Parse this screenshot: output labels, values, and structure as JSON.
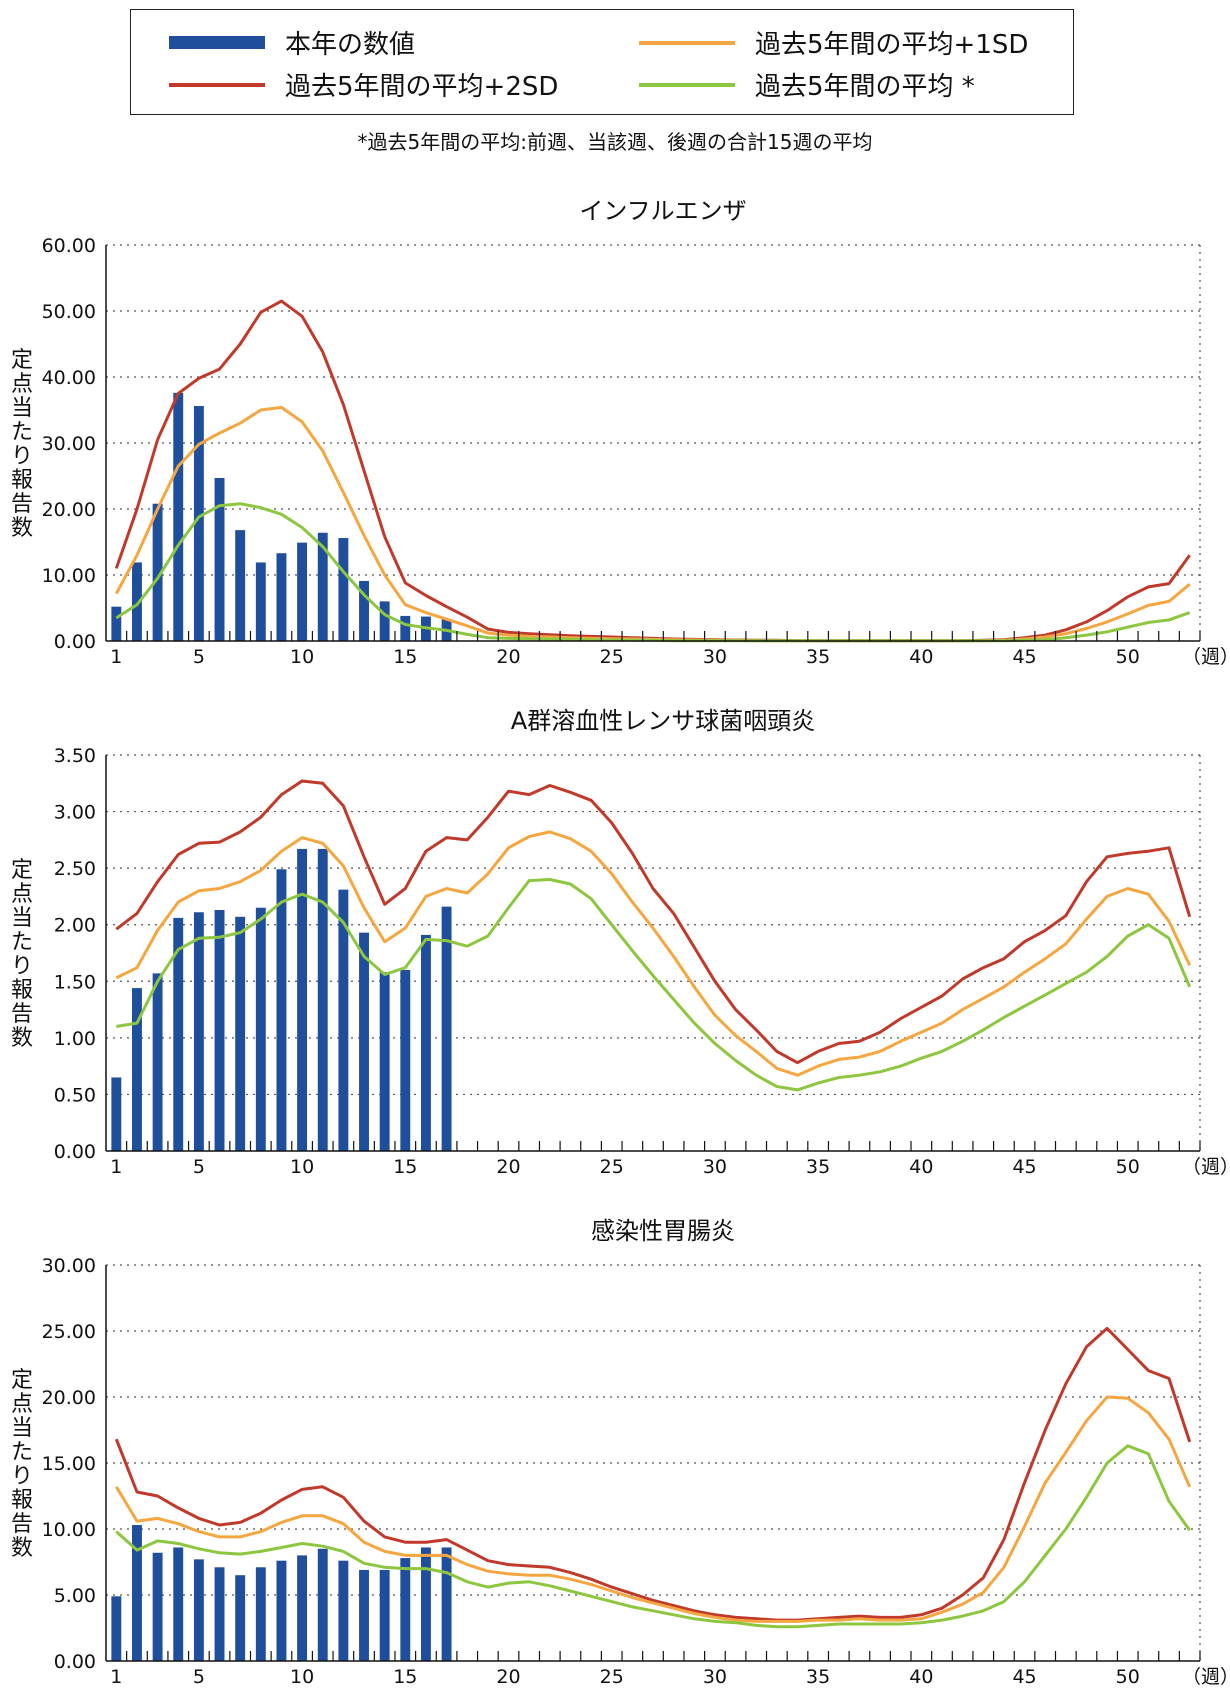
{
  "legend": {
    "items": [
      {
        "label": "本年の数値",
        "kind": "bar",
        "color": "#1f4e9c"
      },
      {
        "label": "過去5年間の平均+1SD",
        "kind": "line",
        "color": "#f5a640"
      },
      {
        "label": "過去5年間の平均+2SD",
        "kind": "line",
        "color": "#c0392b"
      },
      {
        "label": "過去5年間の平均 *",
        "kind": "line",
        "color": "#8dc63f"
      }
    ],
    "footnote": "*過去5年間の平均:前週、当該週、後週の合計15週の平均"
  },
  "colors": {
    "bar": "#1f4e9c",
    "sd1": "#f5a640",
    "sd2": "#c0392b",
    "avg": "#8dc63f",
    "grid": "#555555"
  },
  "chart_data": [
    {
      "type": "bar",
      "title": "インフルエンザ",
      "ylabel": "定点当たり報告数",
      "xlabel": "（週）",
      "ylim": [
        0,
        60
      ],
      "yticks": [
        "0.00",
        "10.00",
        "20.00",
        "30.00",
        "40.00",
        "50.00",
        "60.00"
      ],
      "xticks": [
        "1",
        "5",
        "10",
        "15",
        "20",
        "25",
        "30",
        "35",
        "40",
        "45",
        "50"
      ],
      "grid": true,
      "bars": {
        "name": "本年の数値",
        "weeks": [
          1,
          2,
          3,
          4,
          5,
          6,
          7,
          8,
          9,
          10,
          11,
          12,
          13,
          14,
          15,
          16,
          17
        ],
        "values": [
          5.2,
          11.9,
          20.8,
          37.6,
          35.6,
          24.7,
          16.8,
          11.9,
          13.3,
          14.9,
          16.4,
          15.6,
          9.1,
          6.0,
          3.8,
          3.7,
          3.3
        ]
      },
      "series": [
        {
          "name": "過去5年間の平均+2SD",
          "color": "#c0392b",
          "values": [
            11.0,
            20.0,
            30.5,
            37.5,
            39.8,
            41.2,
            45.0,
            49.8,
            51.5,
            49.2,
            43.8,
            35.8,
            25.8,
            15.8,
            8.8,
            6.9,
            5.2,
            3.6,
            1.8,
            1.3,
            1.1,
            0.95,
            0.8,
            0.7,
            0.6,
            0.5,
            0.4,
            0.3,
            0.25,
            0.2,
            0.15,
            0.1,
            0.1,
            0.05,
            0.05,
            0.05,
            0.05,
            0.05,
            0.05,
            0.05,
            0.05,
            0.05,
            0.1,
            0.2,
            0.5,
            0.9,
            1.7,
            2.9,
            4.6,
            6.7,
            8.2,
            8.7,
            13.0
          ]
        },
        {
          "name": "過去5年間の平均+1SD",
          "color": "#f5a640",
          "values": [
            7.2,
            13.0,
            20.0,
            26.5,
            29.8,
            31.5,
            33.0,
            35.0,
            35.4,
            33.2,
            28.8,
            22.5,
            16.0,
            10.0,
            5.5,
            4.3,
            3.3,
            2.3,
            1.2,
            0.9,
            0.7,
            0.6,
            0.5,
            0.4,
            0.35,
            0.3,
            0.25,
            0.2,
            0.15,
            0.1,
            0.1,
            0.05,
            0.05,
            0.05,
            0.05,
            0.05,
            0.05,
            0.05,
            0.05,
            0.05,
            0.05,
            0.05,
            0.05,
            0.1,
            0.3,
            0.6,
            1.1,
            1.9,
            2.9,
            4.1,
            5.4,
            6.0,
            8.6
          ]
        },
        {
          "name": "過去5年間の平均 *",
          "color": "#8dc63f",
          "values": [
            3.5,
            5.5,
            9.5,
            14.5,
            18.8,
            20.5,
            20.8,
            20.2,
            19.2,
            17.2,
            14.3,
            10.5,
            7.0,
            4.0,
            2.5,
            2.0,
            1.6,
            1.0,
            0.5,
            0.4,
            0.35,
            0.3,
            0.25,
            0.2,
            0.15,
            0.1,
            0.1,
            0.05,
            0.05,
            0.05,
            0.05,
            0.05,
            0.05,
            0.05,
            0.05,
            0.05,
            0.05,
            0.05,
            0.05,
            0.05,
            0.05,
            0.05,
            0.05,
            0.05,
            0.1,
            0.2,
            0.5,
            0.9,
            1.4,
            2.1,
            2.8,
            3.2,
            4.3
          ]
        }
      ]
    },
    {
      "type": "bar",
      "title": "A群溶血性レンサ球菌咽頭炎",
      "ylabel": "定点当たり報告数",
      "xlabel": "（週）",
      "ylim": [
        0,
        3.5
      ],
      "yticks": [
        "0.00",
        "0.50",
        "1.00",
        "1.50",
        "2.00",
        "2.50",
        "3.00",
        "3.50"
      ],
      "xticks": [
        "1",
        "5",
        "10",
        "15",
        "20",
        "25",
        "30",
        "35",
        "40",
        "45",
        "50"
      ],
      "grid": true,
      "bars": {
        "name": "本年の数値",
        "weeks": [
          1,
          2,
          3,
          4,
          5,
          6,
          7,
          8,
          9,
          10,
          11,
          12,
          13,
          14,
          15,
          16,
          17
        ],
        "values": [
          0.65,
          1.44,
          1.57,
          2.06,
          2.11,
          2.13,
          2.07,
          2.15,
          2.49,
          2.67,
          2.67,
          2.31,
          1.93,
          1.58,
          1.6,
          1.91,
          2.16
        ]
      },
      "series": [
        {
          "name": "過去5年間の平均+2SD",
          "color": "#c0392b",
          "values": [
            1.96,
            2.1,
            2.38,
            2.62,
            2.72,
            2.73,
            2.82,
            2.95,
            3.15,
            3.27,
            3.25,
            3.05,
            2.6,
            2.18,
            2.32,
            2.65,
            2.77,
            2.75,
            2.95,
            3.18,
            3.15,
            3.23,
            3.17,
            3.1,
            2.9,
            2.63,
            2.32,
            2.1,
            1.8,
            1.5,
            1.25,
            1.07,
            0.88,
            0.78,
            0.88,
            0.95,
            0.97,
            1.05,
            1.17,
            1.27,
            1.37,
            1.52,
            1.62,
            1.7,
            1.85,
            1.95,
            2.08,
            2.38,
            2.6,
            2.63,
            2.65,
            2.68,
            2.07
          ]
        },
        {
          "name": "過去5年間の平均+1SD",
          "color": "#f5a640",
          "values": [
            1.53,
            1.62,
            1.95,
            2.2,
            2.3,
            2.32,
            2.38,
            2.48,
            2.65,
            2.77,
            2.72,
            2.52,
            2.15,
            1.85,
            1.97,
            2.25,
            2.32,
            2.28,
            2.45,
            2.68,
            2.78,
            2.82,
            2.76,
            2.65,
            2.45,
            2.2,
            1.97,
            1.72,
            1.45,
            1.2,
            1.02,
            0.88,
            0.73,
            0.67,
            0.75,
            0.81,
            0.83,
            0.88,
            0.97,
            1.05,
            1.13,
            1.25,
            1.35,
            1.45,
            1.58,
            1.7,
            1.83,
            2.05,
            2.25,
            2.32,
            2.27,
            2.03,
            1.64
          ]
        },
        {
          "name": "過去5年間の平均 *",
          "color": "#8dc63f",
          "values": [
            1.1,
            1.13,
            1.5,
            1.78,
            1.88,
            1.89,
            1.93,
            2.05,
            2.2,
            2.27,
            2.2,
            2.02,
            1.72,
            1.56,
            1.62,
            1.87,
            1.86,
            1.81,
            1.9,
            2.15,
            2.39,
            2.4,
            2.36,
            2.23,
            2.0,
            1.77,
            1.55,
            1.34,
            1.13,
            0.95,
            0.8,
            0.67,
            0.57,
            0.54,
            0.6,
            0.65,
            0.67,
            0.7,
            0.75,
            0.82,
            0.88,
            0.97,
            1.07,
            1.18,
            1.28,
            1.38,
            1.48,
            1.58,
            1.72,
            1.9,
            2.0,
            1.88,
            1.45
          ]
        }
      ]
    },
    {
      "type": "bar",
      "title": "感染性胃腸炎",
      "ylabel": "定点当たり報告数",
      "xlabel": "（週）",
      "ylim": [
        0,
        30
      ],
      "yticks": [
        "0.00",
        "5.00",
        "10.00",
        "15.00",
        "20.00",
        "25.00",
        "30.00"
      ],
      "xticks": [
        "1",
        "5",
        "10",
        "15",
        "20",
        "25",
        "30",
        "35",
        "40",
        "45",
        "50"
      ],
      "grid": true,
      "bars": {
        "name": "本年の数値",
        "weeks": [
          1,
          2,
          3,
          4,
          5,
          6,
          7,
          8,
          9,
          10,
          11,
          12,
          13,
          14,
          15,
          16,
          17
        ],
        "values": [
          4.9,
          10.3,
          8.2,
          8.6,
          7.7,
          7.1,
          6.5,
          7.1,
          7.6,
          8.0,
          8.5,
          7.6,
          6.9,
          6.9,
          7.8,
          8.6,
          8.6
        ]
      },
      "series": [
        {
          "name": "過去5年間の平均+2SD",
          "color": "#c0392b",
          "values": [
            16.8,
            12.8,
            12.5,
            11.6,
            10.8,
            10.3,
            10.5,
            11.2,
            12.2,
            13.0,
            13.2,
            12.4,
            10.6,
            9.4,
            9.0,
            9.0,
            9.2,
            8.4,
            7.6,
            7.3,
            7.2,
            7.1,
            6.7,
            6.2,
            5.6,
            5.1,
            4.6,
            4.2,
            3.8,
            3.5,
            3.3,
            3.2,
            3.1,
            3.1,
            3.2,
            3.3,
            3.4,
            3.3,
            3.3,
            3.5,
            4.0,
            5.0,
            6.3,
            9.2,
            13.5,
            17.5,
            21.0,
            23.8,
            25.2,
            23.6,
            22.0,
            21.4,
            16.6
          ]
        },
        {
          "name": "過去5年間の平均+1SD",
          "color": "#f5a640",
          "values": [
            13.2,
            10.6,
            10.8,
            10.4,
            9.8,
            9.4,
            9.4,
            9.8,
            10.5,
            11.0,
            11.0,
            10.4,
            9.0,
            8.3,
            8.0,
            8.0,
            8.0,
            7.3,
            6.8,
            6.6,
            6.5,
            6.5,
            6.2,
            5.8,
            5.3,
            4.8,
            4.4,
            4.0,
            3.6,
            3.3,
            3.1,
            3.0,
            3.0,
            3.0,
            3.1,
            3.1,
            3.2,
            3.1,
            3.1,
            3.2,
            3.7,
            4.3,
            5.2,
            7.1,
            10.2,
            13.5,
            15.8,
            18.2,
            20.0,
            19.9,
            18.8,
            16.8,
            13.2
          ]
        },
        {
          "name": "過去5年間の平均 *",
          "color": "#8dc63f",
          "values": [
            9.8,
            8.4,
            9.1,
            8.9,
            8.5,
            8.2,
            8.1,
            8.3,
            8.6,
            8.9,
            8.7,
            8.3,
            7.4,
            7.1,
            7.0,
            7.0,
            6.7,
            6.0,
            5.6,
            5.9,
            6.0,
            5.7,
            5.3,
            4.9,
            4.5,
            4.1,
            3.8,
            3.5,
            3.2,
            3.0,
            2.9,
            2.7,
            2.6,
            2.6,
            2.7,
            2.8,
            2.8,
            2.8,
            2.8,
            2.9,
            3.1,
            3.4,
            3.8,
            4.5,
            6.0,
            8.0,
            10.0,
            12.4,
            15.0,
            16.3,
            15.7,
            12.1,
            9.9
          ]
        }
      ]
    }
  ]
}
